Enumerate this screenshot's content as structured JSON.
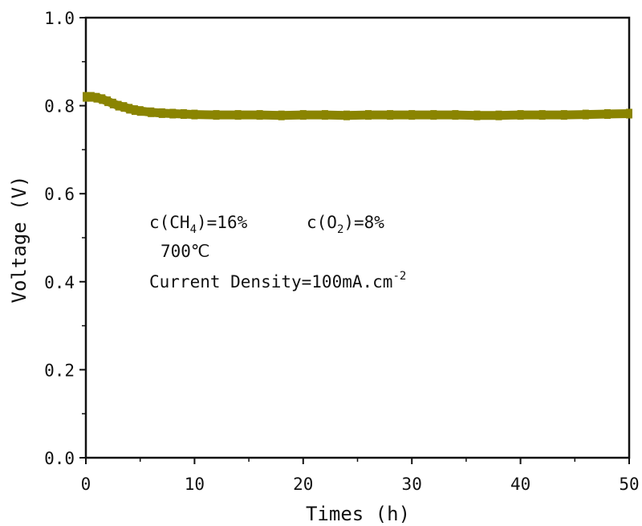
{
  "chart_data": {
    "type": "line",
    "title": "",
    "xlabel": "Times (h)",
    "ylabel": "Voltage (V)",
    "xlim": [
      0,
      50
    ],
    "ylim": [
      0.0,
      1.0
    ],
    "x_ticks": [
      "0",
      "10",
      "20",
      "30",
      "40",
      "50"
    ],
    "y_ticks": [
      "0.0",
      "0.2",
      "0.4",
      "0.6",
      "0.8",
      "1.0"
    ],
    "grid": false,
    "series": [
      {
        "color": "#8a8400",
        "x": [
          0,
          0.5,
          1,
          1.5,
          2,
          2.5,
          3,
          3.5,
          4,
          4.5,
          5,
          6,
          7,
          8,
          9,
          10,
          12,
          14,
          16,
          18,
          20,
          22,
          24,
          26,
          28,
          30,
          32,
          34,
          36,
          38,
          40,
          42,
          44,
          46,
          48,
          50
        ],
        "y": [
          0.82,
          0.82,
          0.818,
          0.815,
          0.81,
          0.805,
          0.8,
          0.797,
          0.793,
          0.79,
          0.788,
          0.785,
          0.783,
          0.782,
          0.781,
          0.78,
          0.779,
          0.779,
          0.779,
          0.778,
          0.779,
          0.779,
          0.778,
          0.779,
          0.779,
          0.779,
          0.779,
          0.779,
          0.778,
          0.778,
          0.779,
          0.779,
          0.779,
          0.78,
          0.781,
          0.782
        ]
      }
    ],
    "annotations": {
      "line1a": {
        "text": "c(CH",
        "sub": "4",
        "tail": ")=16%"
      },
      "line1b": {
        "text": "c(O",
        "sub": "2",
        "tail": ")=8%"
      },
      "line2": {
        "text": "700℃"
      },
      "line3": {
        "text": "Current Density=100mA.cm",
        "sup": "-2"
      }
    }
  }
}
